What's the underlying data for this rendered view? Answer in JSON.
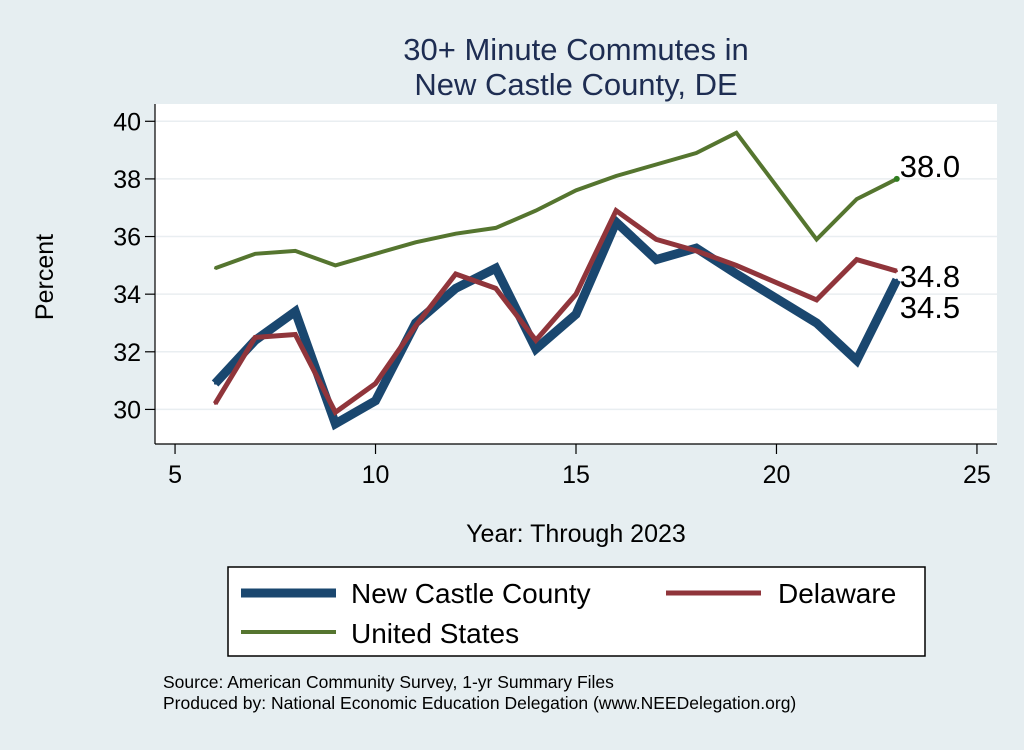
{
  "chart_data": {
    "type": "line",
    "title": [
      "30+ Minute Commutes in",
      "New Castle County, DE"
    ],
    "xlabel": "Year: Through 2023",
    "ylabel": "Percent",
    "xlim": [
      4.5,
      25.5
    ],
    "ylim": [
      28.8,
      40.6
    ],
    "xticks": [
      5,
      10,
      15,
      20,
      25
    ],
    "yticks": [
      30,
      32,
      34,
      36,
      38,
      40
    ],
    "grid": true,
    "legend_position": "bottom",
    "series": [
      {
        "name": "New Castle County",
        "color": "#1a476f",
        "x": [
          6,
          7,
          8,
          9,
          10,
          11,
          12,
          13,
          14,
          15,
          16,
          17,
          18,
          19,
          21,
          22,
          23
        ],
        "values": [
          30.9,
          32.4,
          33.4,
          29.5,
          30.3,
          33.0,
          34.2,
          34.9,
          32.1,
          33.3,
          36.5,
          35.2,
          35.6,
          34.7,
          33.0,
          31.7,
          34.5
        ],
        "end_label": "34.5"
      },
      {
        "name": "Delaware",
        "color": "#90353b",
        "x": [
          6,
          7,
          8,
          9,
          10,
          11,
          12,
          13,
          14,
          15,
          16,
          17,
          18,
          19,
          21,
          22,
          23
        ],
        "values": [
          30.2,
          32.5,
          32.6,
          29.9,
          30.9,
          32.9,
          34.7,
          34.2,
          32.4,
          34.0,
          36.9,
          35.9,
          35.5,
          35.0,
          33.8,
          35.2,
          34.8
        ],
        "end_label": "34.8"
      },
      {
        "name": "United States",
        "color": "#55752f",
        "x": [
          6,
          7,
          8,
          9,
          10,
          11,
          12,
          13,
          14,
          15,
          16,
          17,
          18,
          19,
          21,
          22,
          23
        ],
        "values": [
          34.9,
          35.4,
          35.5,
          35.0,
          35.4,
          35.8,
          36.1,
          36.3,
          36.9,
          37.6,
          38.1,
          38.5,
          38.9,
          39.6,
          35.9,
          37.3,
          38.0
        ],
        "end_label": "38.0"
      }
    ],
    "notes": [
      "Source: American Community Survey, 1-yr Summary Files",
      "Produced by: National Economic Education Delegation (www.NEEDelegation.org)"
    ]
  }
}
